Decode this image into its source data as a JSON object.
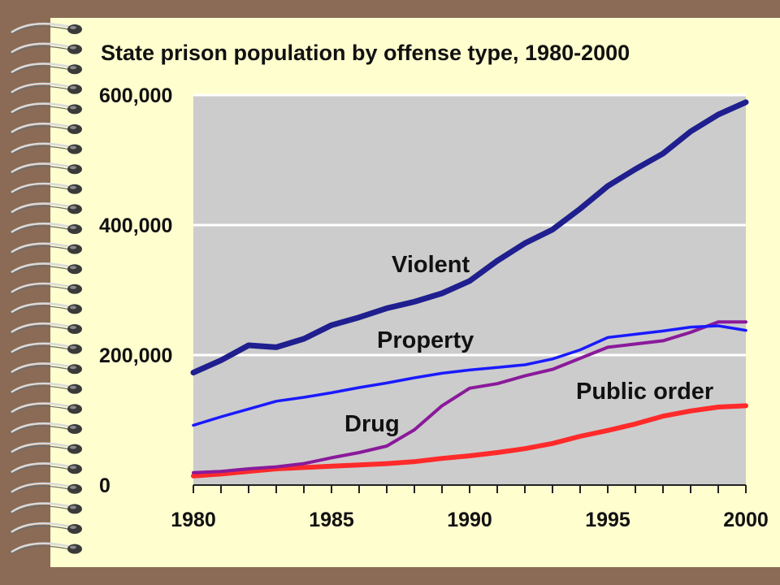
{
  "slide": {
    "background_color": "#8b6b55",
    "paper_color": "#fffecf",
    "decoration": "spiral-binding"
  },
  "chart_data": {
    "type": "line",
    "title": "State prison population by offense type, 1980-2000",
    "xlabel": "",
    "ylabel": "",
    "xlim": [
      1980,
      2000
    ],
    "ylim": [
      0,
      600000
    ],
    "x_ticks": [
      1980,
      1985,
      1990,
      1995,
      2000
    ],
    "x_tick_labels": [
      "1980",
      "1985",
      "1990",
      "1995",
      "2000"
    ],
    "y_ticks": [
      0,
      200000,
      400000,
      600000
    ],
    "y_tick_labels": [
      "0",
      "200,000",
      "400,000",
      "600,000"
    ],
    "grid": "horizontal",
    "plot_background": "#cccccc",
    "grid_color": "#ffffff",
    "x": [
      1980,
      1981,
      1982,
      1983,
      1984,
      1985,
      1986,
      1987,
      1988,
      1989,
      1990,
      1991,
      1992,
      1993,
      1994,
      1995,
      1996,
      1997,
      1998,
      1999,
      2000
    ],
    "series": [
      {
        "name": "Violent",
        "color": "#1f1f8f",
        "values": [
          173000,
          192000,
          215000,
          212000,
          225000,
          246000,
          258000,
          272000,
          282000,
          295000,
          314000,
          345000,
          372000,
          393000,
          425000,
          460000,
          486000,
          510000,
          544000,
          570000,
          589000
        ]
      },
      {
        "name": "Property",
        "color": "#1a1aff",
        "values": [
          92000,
          105000,
          117000,
          129000,
          135000,
          142000,
          150000,
          157000,
          165000,
          172000,
          177000,
          181000,
          185000,
          194000,
          208000,
          227000,
          232000,
          237000,
          243000,
          245000,
          238000
        ]
      },
      {
        "name": "Drug",
        "color": "#8a1a9a",
        "values": [
          19000,
          21000,
          25000,
          28000,
          33000,
          42000,
          50000,
          60000,
          85000,
          122000,
          149000,
          156000,
          168000,
          178000,
          195000,
          212000,
          217000,
          222000,
          235000,
          251000,
          251000
        ]
      },
      {
        "name": "Public order",
        "color": "#ff2a2a",
        "values": [
          14000,
          17000,
          21000,
          25000,
          27000,
          29000,
          31000,
          33000,
          36000,
          41000,
          45000,
          50000,
          56000,
          64000,
          75000,
          84000,
          94000,
          106000,
          114000,
          120000,
          122000
        ]
      }
    ]
  }
}
